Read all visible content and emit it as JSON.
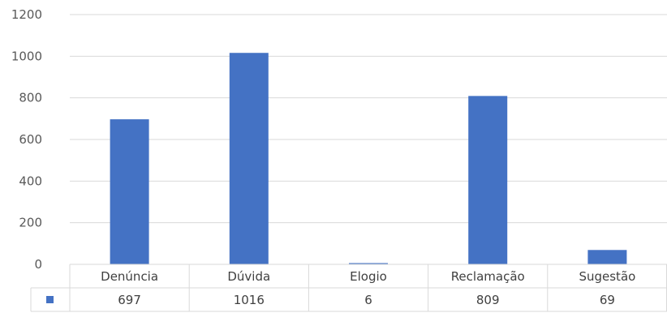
{
  "chart_data": {
    "type": "bar",
    "categories": [
      "Denúncia",
      "Dúvida",
      "Elogio",
      "Reclamação",
      "Sugestão"
    ],
    "series": [
      {
        "values": [
          697,
          1016,
          6,
          809,
          69
        ],
        "color": "#4472c4"
      }
    ],
    "ylim": [
      0,
      1200
    ],
    "yticks": [
      0,
      200,
      400,
      600,
      800,
      1000,
      1200
    ],
    "grid": true,
    "data_table": true,
    "legend_key_color": "#4472c4"
  }
}
